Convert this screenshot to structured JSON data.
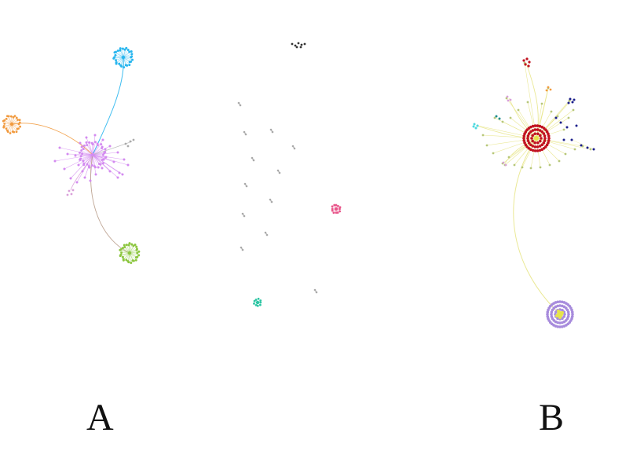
{
  "labels": {
    "a": "A",
    "b": "B"
  },
  "colors": {
    "violet": "#d38bf0",
    "cyan": "#29b6ee",
    "orange": "#f19a3e",
    "green": "#8cc63f",
    "pink": "#e8558a",
    "teal": "#2cc5a3",
    "gray": "#aaaaaa",
    "dark": "#333333",
    "red": "#c1121f",
    "yellow": "#e5e34a",
    "navy": "#1b1f8c",
    "purple": "#a78bdc",
    "mauve": "#d9a0d9",
    "edge_yellow": "#e8e58a"
  }
}
